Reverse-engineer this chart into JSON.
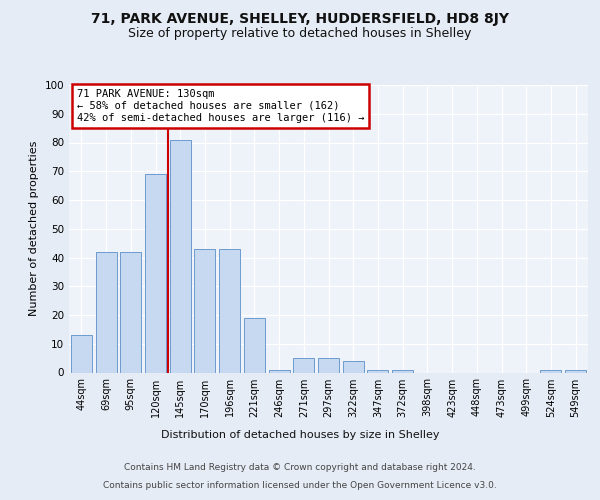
{
  "title1": "71, PARK AVENUE, SHELLEY, HUDDERSFIELD, HD8 8JY",
  "title2": "Size of property relative to detached houses in Shelley",
  "xlabel": "Distribution of detached houses by size in Shelley",
  "ylabel": "Number of detached properties",
  "categories": [
    "44sqm",
    "69sqm",
    "95sqm",
    "120sqm",
    "145sqm",
    "170sqm",
    "196sqm",
    "221sqm",
    "246sqm",
    "271sqm",
    "297sqm",
    "322sqm",
    "347sqm",
    "372sqm",
    "398sqm",
    "423sqm",
    "448sqm",
    "473sqm",
    "499sqm",
    "524sqm",
    "549sqm"
  ],
  "values": [
    13,
    42,
    42,
    69,
    81,
    43,
    43,
    19,
    1,
    5,
    5,
    4,
    1,
    1,
    0,
    0,
    0,
    0,
    0,
    1,
    1
  ],
  "bar_color": "#c6d9f0",
  "bar_edge_color": "#5b8fc9",
  "marker_label": "71 PARK AVENUE: 130sqm",
  "annotation_line1": "← 58% of detached houses are smaller (162)",
  "annotation_line2": "42% of semi-detached houses are larger (116) →",
  "annotation_box_color": "#ffffff",
  "annotation_box_edge_color": "#cc0000",
  "vline_color": "#cc0000",
  "vline_x_index": 3.5,
  "ylim": [
    0,
    100
  ],
  "yticks": [
    0,
    10,
    20,
    30,
    40,
    50,
    60,
    70,
    80,
    90,
    100
  ],
  "footer1": "Contains HM Land Registry data © Crown copyright and database right 2024.",
  "footer2": "Contains public sector information licensed under the Open Government Licence v3.0.",
  "bg_color": "#e6ecf5",
  "plot_bg_color": "#eef2f9",
  "title1_fontsize": 10,
  "title2_fontsize": 9,
  "ylabel_fontsize": 8,
  "xlabel_fontsize": 8,
  "tick_fontsize": 7,
  "footer_fontsize": 6.5
}
